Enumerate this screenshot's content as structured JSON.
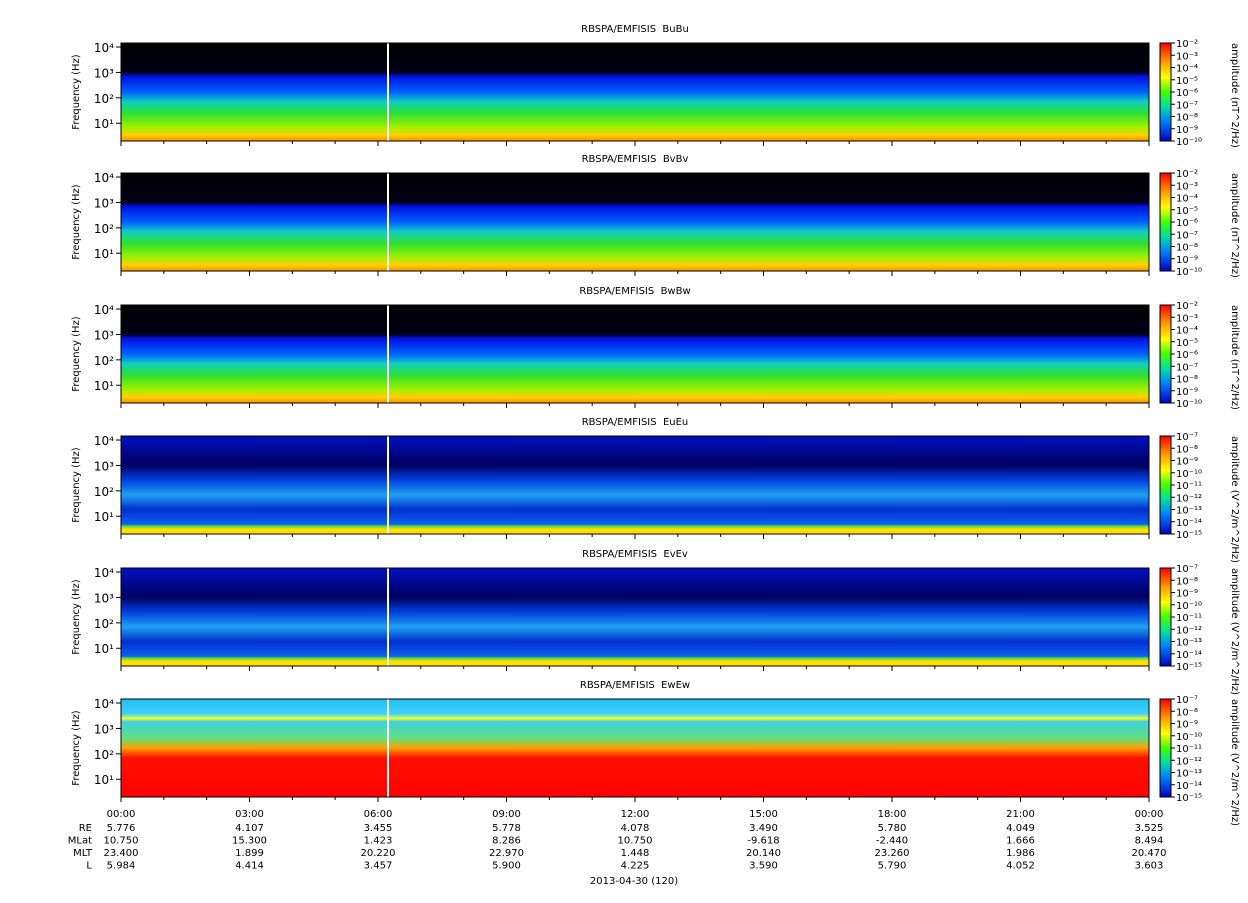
{
  "chart_data": {
    "type": "spectrogram",
    "panels": [
      {
        "title": "RBSPA/EMFISIS  BuBu",
        "ylabel": "Frequency (Hz)",
        "log_y": true,
        "ylim": [
          2,
          14400
        ],
        "yticks": [
          {
            "value": 10,
            "label": "10¹"
          },
          {
            "value": 100,
            "label": "10²"
          },
          {
            "value": 1000,
            "label": "10³"
          },
          {
            "value": 10000,
            "label": "10⁴"
          }
        ],
        "colorbar": {
          "label": "amplitude (nT^2/Hz)",
          "lim": [
            1e-10,
            0.01
          ],
          "ticks": [
            {
              "value": 0.01,
              "label": "10⁻²"
            },
            {
              "value": 0.001,
              "label": "10⁻³"
            },
            {
              "value": 0.0001,
              "label": "10⁻⁴"
            },
            {
              "value": 1e-05,
              "label": "10⁻⁵"
            },
            {
              "value": 1e-06,
              "label": "10⁻⁶"
            },
            {
              "value": 1e-07,
              "label": "10⁻⁷"
            },
            {
              "value": 1e-08,
              "label": "10⁻⁸"
            },
            {
              "value": 1e-09,
              "label": "10⁻⁹"
            },
            {
              "value": 1e-10,
              "label": "10⁻¹⁰"
            }
          ]
        }
      },
      {
        "title": "RBSPA/EMFISIS  BvBv",
        "ylabel": "Frequency (Hz)",
        "log_y": true,
        "ylim": [
          2,
          14400
        ],
        "yticks": [
          {
            "value": 10,
            "label": "10¹"
          },
          {
            "value": 100,
            "label": "10²"
          },
          {
            "value": 1000,
            "label": "10³"
          },
          {
            "value": 10000,
            "label": "10⁴"
          }
        ],
        "colorbar": {
          "label": "amplitude (nT^2/Hz)",
          "lim": [
            1e-10,
            0.01
          ],
          "ticks": [
            {
              "value": 0.01,
              "label": "10⁻²"
            },
            {
              "value": 0.001,
              "label": "10⁻³"
            },
            {
              "value": 0.0001,
              "label": "10⁻⁴"
            },
            {
              "value": 1e-05,
              "label": "10⁻⁵"
            },
            {
              "value": 1e-06,
              "label": "10⁻⁶"
            },
            {
              "value": 1e-07,
              "label": "10⁻⁷"
            },
            {
              "value": 1e-08,
              "label": "10⁻⁸"
            },
            {
              "value": 1e-09,
              "label": "10⁻⁹"
            },
            {
              "value": 1e-10,
              "label": "10⁻¹⁰"
            }
          ]
        }
      },
      {
        "title": "RBSPA/EMFISIS  BwBw",
        "ylabel": "Frequency (Hz)",
        "log_y": true,
        "ylim": [
          2,
          14400
        ],
        "yticks": [
          {
            "value": 10,
            "label": "10¹"
          },
          {
            "value": 100,
            "label": "10²"
          },
          {
            "value": 1000,
            "label": "10³"
          },
          {
            "value": 10000,
            "label": "10⁴"
          }
        ],
        "colorbar": {
          "label": "amplitude (nT^2/Hz)",
          "lim": [
            1e-10,
            0.01
          ],
          "ticks": [
            {
              "value": 0.01,
              "label": "10⁻²"
            },
            {
              "value": 0.001,
              "label": "10⁻³"
            },
            {
              "value": 0.0001,
              "label": "10⁻⁴"
            },
            {
              "value": 1e-05,
              "label": "10⁻⁵"
            },
            {
              "value": 1e-06,
              "label": "10⁻⁶"
            },
            {
              "value": 1e-07,
              "label": "10⁻⁷"
            },
            {
              "value": 1e-08,
              "label": "10⁻⁸"
            },
            {
              "value": 1e-09,
              "label": "10⁻⁹"
            },
            {
              "value": 1e-10,
              "label": "10⁻¹⁰"
            }
          ]
        }
      },
      {
        "title": "RBSPA/EMFISIS  EuEu",
        "ylabel": "Frequency (Hz)",
        "log_y": true,
        "ylim": [
          2,
          14400
        ],
        "yticks": [
          {
            "value": 10,
            "label": "10¹"
          },
          {
            "value": 100,
            "label": "10²"
          },
          {
            "value": 1000,
            "label": "10³"
          },
          {
            "value": 10000,
            "label": "10⁴"
          }
        ],
        "colorbar": {
          "label": "amplitude (V^2/m^2/Hz)",
          "lim": [
            1e-15,
            1e-07
          ],
          "ticks": [
            {
              "value": 1e-07,
              "label": "10⁻⁷"
            },
            {
              "value": 1e-08,
              "label": "10⁻⁸"
            },
            {
              "value": 1e-09,
              "label": "10⁻⁹"
            },
            {
              "value": 1e-10,
              "label": "10⁻¹⁰"
            },
            {
              "value": 1e-11,
              "label": "10⁻¹¹"
            },
            {
              "value": 1e-12,
              "label": "10⁻¹²"
            },
            {
              "value": 1e-13,
              "label": "10⁻¹³"
            },
            {
              "value": 1e-14,
              "label": "10⁻¹⁴"
            },
            {
              "value": 1e-15,
              "label": "10⁻¹⁵"
            }
          ]
        }
      },
      {
        "title": "RBSPA/EMFISIS  EvEv",
        "ylabel": "Frequency (Hz)",
        "log_y": true,
        "ylim": [
          2,
          14400
        ],
        "yticks": [
          {
            "value": 10,
            "label": "10¹"
          },
          {
            "value": 100,
            "label": "10²"
          },
          {
            "value": 1000,
            "label": "10³"
          },
          {
            "value": 10000,
            "label": "10⁴"
          }
        ],
        "colorbar": {
          "label": "amplitude (V^2/m^2/Hz)",
          "lim": [
            1e-15,
            1e-07
          ],
          "ticks": [
            {
              "value": 1e-07,
              "label": "10⁻⁷"
            },
            {
              "value": 1e-08,
              "label": "10⁻⁸"
            },
            {
              "value": 1e-09,
              "label": "10⁻⁹"
            },
            {
              "value": 1e-10,
              "label": "10⁻¹⁰"
            },
            {
              "value": 1e-11,
              "label": "10⁻¹¹"
            },
            {
              "value": 1e-12,
              "label": "10⁻¹²"
            },
            {
              "value": 1e-13,
              "label": "10⁻¹³"
            },
            {
              "value": 1e-14,
              "label": "10⁻¹⁴"
            },
            {
              "value": 1e-15,
              "label": "10⁻¹⁵"
            }
          ]
        }
      },
      {
        "title": "RBSPA/EMFISIS  EwEw",
        "ylabel": "Frequency (Hz)",
        "log_y": true,
        "ylim": [
          2,
          14400
        ],
        "yticks": [
          {
            "value": 10,
            "label": "10¹"
          },
          {
            "value": 100,
            "label": "10²"
          },
          {
            "value": 1000,
            "label": "10³"
          },
          {
            "value": 10000,
            "label": "10⁴"
          }
        ],
        "colorbar": {
          "label": "amplitude (V^2/m^2/Hz)",
          "lim": [
            1e-15,
            1e-07
          ],
          "ticks": [
            {
              "value": 1e-07,
              "label": "10⁻⁷"
            },
            {
              "value": 1e-08,
              "label": "10⁻⁸"
            },
            {
              "value": 1e-09,
              "label": "10⁻⁹"
            },
            {
              "value": 1e-10,
              "label": "10⁻¹⁰"
            },
            {
              "value": 1e-11,
              "label": "10⁻¹¹"
            },
            {
              "value": 1e-12,
              "label": "10⁻¹²"
            },
            {
              "value": 1e-13,
              "label": "10⁻¹³"
            },
            {
              "value": 1e-14,
              "label": "10⁻¹⁴"
            },
            {
              "value": 1e-15,
              "label": "10⁻¹⁵"
            }
          ]
        }
      }
    ],
    "xlim": [
      0,
      24
    ],
    "xticks": [
      {
        "value": 0,
        "label": "00:00"
      },
      {
        "value": 3,
        "label": "03:00"
      },
      {
        "value": 6,
        "label": "06:00"
      },
      {
        "value": 9,
        "label": "09:00"
      },
      {
        "value": 12,
        "label": "12:00"
      },
      {
        "value": 15,
        "label": "15:00"
      },
      {
        "value": 18,
        "label": "18:00"
      },
      {
        "value": 21,
        "label": "21:00"
      },
      {
        "value": 24,
        "label": "00:00"
      }
    ],
    "ephemeris": [
      {
        "name": "RE",
        "values": [
          "5.776",
          "4.107",
          "3.455",
          "5.778",
          "4.078",
          "3.490",
          "5.780",
          "4.049",
          "3.525"
        ]
      },
      {
        "name": "MLat",
        "values": [
          "10.750",
          "15.300",
          "1.423",
          "8.286",
          "10.750",
          "-9.618",
          "-2.440",
          "1.666",
          "8.494"
        ]
      },
      {
        "name": "MLT",
        "values": [
          "23.400",
          "1.899",
          "20.220",
          "22.970",
          "1.448",
          "20.140",
          "23.260",
          "1.986",
          "20.470"
        ]
      },
      {
        "name": "L",
        "values": [
          "5.984",
          "4.414",
          "3.457",
          "5.900",
          "4.225",
          "3.590",
          "5.790",
          "4.052",
          "3.603"
        ]
      }
    ],
    "xlabel": "2013-04-30 (120)"
  }
}
